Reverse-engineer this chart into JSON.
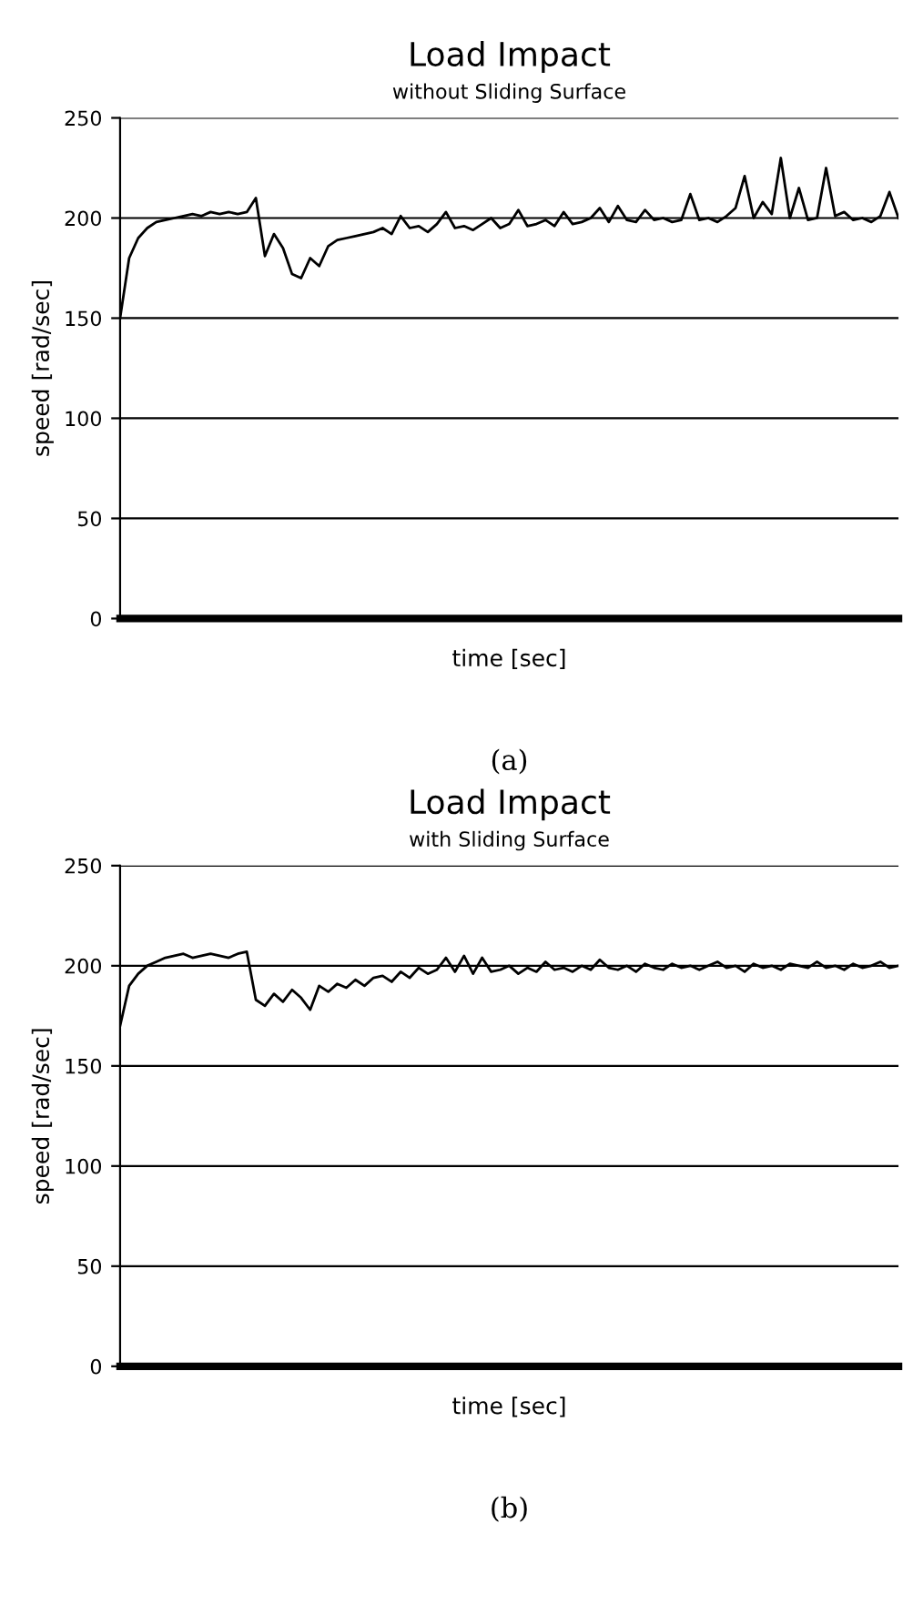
{
  "chart_data": [
    {
      "type": "line",
      "title": "Load Impact",
      "subtitle": "without Sliding Surface",
      "xlabel": "time [sec]",
      "ylabel": "speed [rad/sec]",
      "annotations": [
        "(a)"
      ],
      "categories": [
        null,
        null,
        null,
        null,
        null,
        null,
        null,
        null,
        null,
        null,
        null,
        null,
        null,
        null,
        null,
        null,
        null,
        null,
        null,
        null,
        null,
        null,
        null,
        null,
        null,
        null,
        null,
        null,
        null,
        null,
        null,
        null,
        null,
        null,
        null,
        null,
        null,
        null,
        null,
        null,
        null,
        null,
        null,
        null,
        null,
        null,
        null,
        null,
        null,
        null,
        null,
        null,
        null,
        null,
        null,
        null,
        null,
        null,
        null,
        null,
        null,
        null,
        null,
        null,
        null,
        null,
        null,
        null,
        null,
        null,
        null,
        null,
        null,
        null,
        null,
        null,
        null,
        null,
        null,
        null,
        null,
        null,
        null,
        null,
        null,
        null,
        null
      ],
      "series": [
        {
          "color": "#000000",
          "values": [
            150,
            180,
            190,
            195,
            198,
            199,
            200,
            201,
            202,
            201,
            203,
            202,
            203,
            202,
            203,
            210,
            181,
            192,
            185,
            172,
            170,
            180,
            176,
            186,
            189,
            190,
            191,
            192,
            193,
            195,
            192,
            201,
            195,
            196,
            193,
            197,
            203,
            195,
            196,
            194,
            197,
            200,
            195,
            197,
            204,
            196,
            197,
            199,
            196,
            203,
            197,
            198,
            200,
            205,
            198,
            206,
            199,
            198,
            204,
            199,
            200,
            198,
            199,
            212,
            199,
            200,
            198,
            201,
            205,
            221,
            200,
            208,
            202,
            230,
            200,
            215,
            199,
            200,
            225,
            201,
            203,
            199,
            200,
            198,
            201,
            213,
            200
          ]
        }
      ],
      "ylim": [
        0,
        250
      ],
      "yticks": [
        0,
        50,
        100,
        150,
        200,
        250
      ],
      "grid": "y",
      "tick_labels": "y",
      "legend": false
    },
    {
      "type": "line",
      "title": "Load Impact",
      "subtitle": "with Sliding Surface",
      "xlabel": "time [sec]",
      "ylabel": "speed [rad/sec]",
      "annotations": [
        "(b)"
      ],
      "categories": [
        null,
        null,
        null,
        null,
        null,
        null,
        null,
        null,
        null,
        null,
        null,
        null,
        null,
        null,
        null,
        null,
        null,
        null,
        null,
        null,
        null,
        null,
        null,
        null,
        null,
        null,
        null,
        null,
        null,
        null,
        null,
        null,
        null,
        null,
        null,
        null,
        null,
        null,
        null,
        null,
        null,
        null,
        null,
        null,
        null,
        null,
        null,
        null,
        null,
        null,
        null,
        null,
        null,
        null,
        null,
        null,
        null,
        null,
        null,
        null,
        null,
        null,
        null,
        null,
        null,
        null,
        null,
        null,
        null,
        null,
        null,
        null,
        null,
        null,
        null,
        null,
        null,
        null,
        null,
        null,
        null,
        null,
        null,
        null,
        null,
        null,
        null
      ],
      "series": [
        {
          "color": "#000000",
          "values": [
            170,
            190,
            196,
            200,
            202,
            204,
            205,
            206,
            204,
            205,
            206,
            205,
            204,
            206,
            207,
            183,
            180,
            186,
            182,
            188,
            184,
            178,
            190,
            187,
            191,
            189,
            193,
            190,
            194,
            195,
            192,
            197,
            194,
            199,
            196,
            198,
            204,
            197,
            205,
            196,
            204,
            197,
            198,
            200,
            196,
            199,
            197,
            202,
            198,
            199,
            197,
            200,
            198,
            203,
            199,
            198,
            200,
            197,
            201,
            199,
            198,
            201,
            199,
            200,
            198,
            200,
            202,
            199,
            200,
            197,
            201,
            199,
            200,
            198,
            201,
            200,
            199,
            202,
            199,
            200,
            198,
            201,
            199,
            200,
            202,
            199,
            200
          ]
        }
      ],
      "ylim": [
        0,
        250
      ],
      "yticks": [
        0,
        50,
        100,
        150,
        200,
        250
      ],
      "grid": "y",
      "tick_labels": "y",
      "legend": false
    }
  ]
}
